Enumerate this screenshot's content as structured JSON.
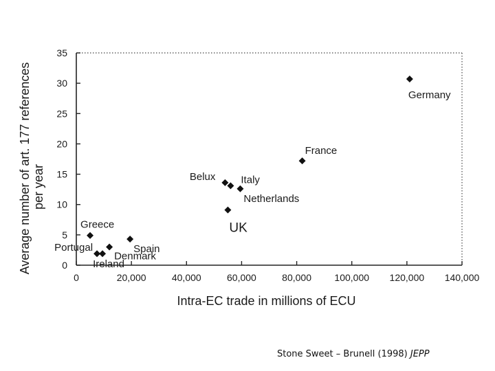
{
  "chart_data": {
    "type": "scatter",
    "title": "",
    "xlabel": "Intra-EC trade in millions of ECU",
    "ylabel": "Average number of art. 177 references per year",
    "xlim": [
      0,
      140000
    ],
    "ylim": [
      0,
      35
    ],
    "x_ticks": [
      "0",
      "20,000",
      "40,000",
      "60,000",
      "80,000",
      "100,000",
      "120,000",
      "140,000"
    ],
    "y_ticks": [
      "0",
      "5",
      "10",
      "15",
      "20",
      "25",
      "30",
      "35"
    ],
    "grid": false,
    "points": [
      {
        "label": "Germany",
        "x": 121000,
        "y": 30.7
      },
      {
        "label": "France",
        "x": 82000,
        "y": 17.2
      },
      {
        "label": "Belux",
        "x": 54000,
        "y": 13.6
      },
      {
        "label": "Italy",
        "x": 56000,
        "y": 13.1
      },
      {
        "label": "Netherlands",
        "x": 59500,
        "y": 12.6
      },
      {
        "label": "UK",
        "x": 55000,
        "y": 9.1
      },
      {
        "label": "Greece",
        "x": 5000,
        "y": 4.9
      },
      {
        "label": "Spain",
        "x": 19500,
        "y": 4.3
      },
      {
        "label": "Denmark",
        "x": 12000,
        "y": 3.0
      },
      {
        "label": "Portugal",
        "x": 7500,
        "y": 1.9
      },
      {
        "label": "Ireland",
        "x": 9500,
        "y": 1.9
      }
    ]
  },
  "citation": {
    "authors": "Stone Sweet – Brunell (1998) ",
    "journal": "JEPP"
  }
}
